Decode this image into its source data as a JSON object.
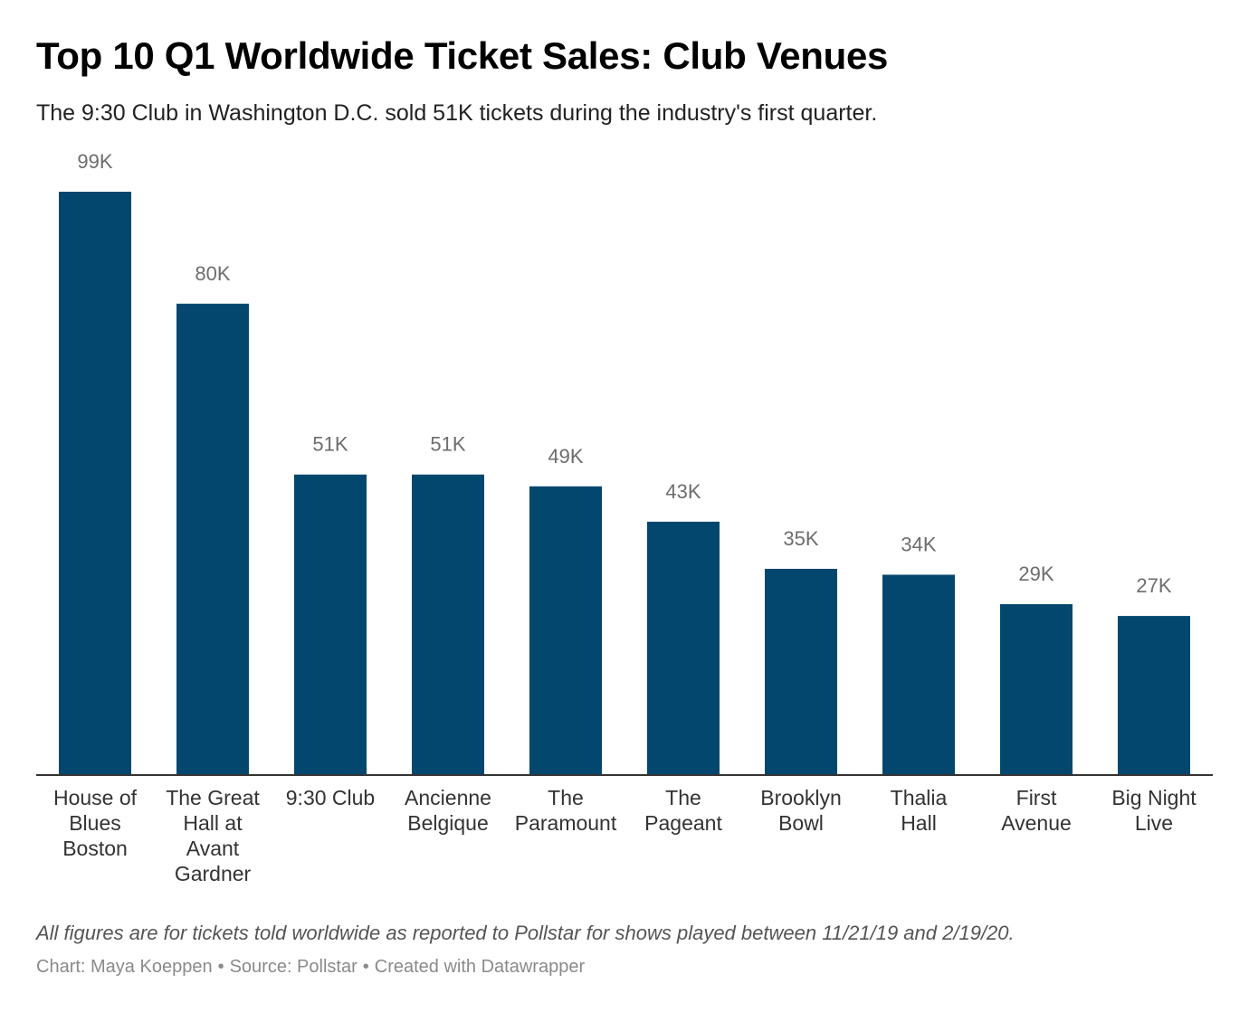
{
  "chart_data": {
    "type": "bar",
    "title": "Top 10 Q1 Worldwide Ticket Sales: Club Venues",
    "subtitle": "The 9:30 Club in Washington D.C. sold 51K tickets during the industry's first quarter.",
    "categories": [
      [
        "House of",
        "Blues",
        "Boston"
      ],
      [
        "The Great",
        "Hall at",
        "Avant",
        "Gardner"
      ],
      [
        "9:30 Club"
      ],
      [
        "Ancienne",
        "Belgique"
      ],
      [
        "The",
        "Paramount"
      ],
      [
        "The",
        "Pageant"
      ],
      [
        "Brooklyn",
        "Bowl"
      ],
      [
        "Thalia",
        "Hall"
      ],
      [
        "First",
        "Avenue"
      ],
      [
        "Big Night",
        "Live"
      ]
    ],
    "values": [
      99,
      80,
      51,
      51,
      49,
      43,
      35,
      34,
      29,
      27
    ],
    "value_labels": [
      "99K",
      "80K",
      "51K",
      "51K",
      "49K",
      "43K",
      "35K",
      "34K",
      "29K",
      "27K"
    ],
    "xlabel": "",
    "ylabel": "",
    "ylim": [
      0,
      99
    ],
    "grid": false,
    "legend": "none",
    "bar_color": "#03476f",
    "axis_color": "#333333"
  },
  "notes": "All figures are for tickets told worldwide as reported to Pollstar for shows played between 11/21/19 and 2/19/20.",
  "byline": {
    "chart_credit": "Chart: Maya Koeppen",
    "source": "Source: Pollstar",
    "tool": "Created with Datawrapper",
    "separator": "•"
  }
}
